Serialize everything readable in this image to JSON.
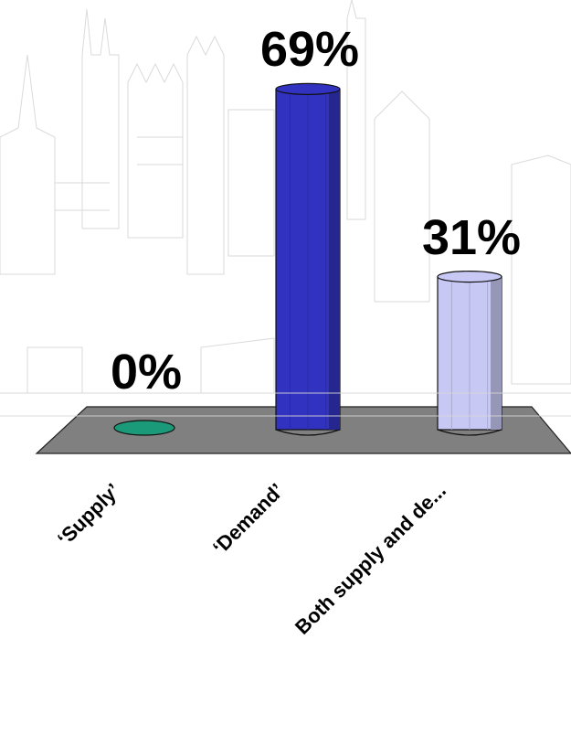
{
  "chart_data": {
    "type": "bar",
    "categories": [
      "‘Supply’",
      "‘Demand’",
      "Both supply and de..."
    ],
    "values": [
      0,
      69,
      31
    ],
    "value_labels": [
      "0%",
      "69%",
      "31%"
    ],
    "colors": [
      "#1a9a78",
      "#3232c0",
      "#c8c8f4"
    ],
    "floor_color": "#808080",
    "ylim": [
      0,
      100
    ],
    "grid": false,
    "legend": "none"
  }
}
